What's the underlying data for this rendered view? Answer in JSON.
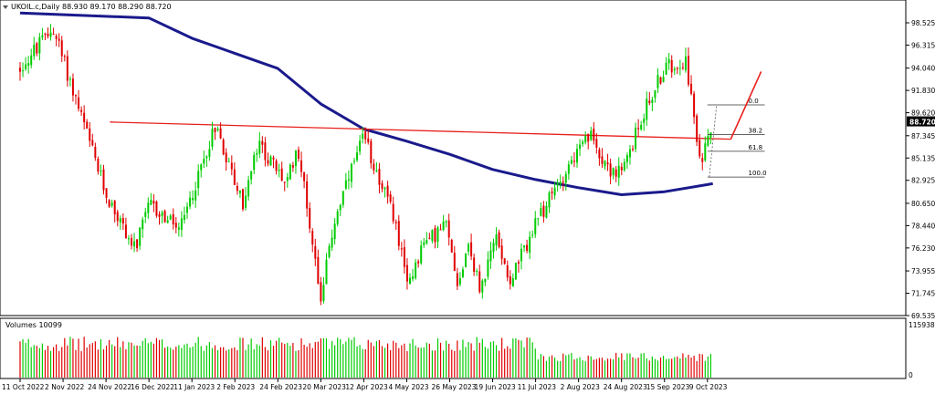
{
  "chart_data": [
    {
      "type": "candlestick",
      "title": "UKOIL.c,Daily",
      "ohlc_readout": "88.930 89.170 88.290 88.720",
      "current_price": "88.720",
      "y_ticks": [
        "98.525",
        "96.315",
        "94.040",
        "91.830",
        "89.620",
        "87.345",
        "85.135",
        "82.925",
        "80.650",
        "78.440",
        "76.230",
        "73.955",
        "71.745",
        "69.535"
      ],
      "ylim": [
        69.535,
        99.6
      ],
      "x_ticks": [
        "11 Oct 2022",
        "2 Nov 2022",
        "24 Nov 2022",
        "16 Dec 2022",
        "11 Jan 2023",
        "2 Feb 2023",
        "24 Feb 2023",
        "20 Mar 2023",
        "12 Apr 2023",
        "4 May 2023",
        "26 May 2023",
        "19 Jun 2023",
        "11 Jul 2023",
        "2 Aug 2023",
        "24 Aug 2023",
        "15 Sep 2023",
        "9 Oct 2023"
      ],
      "price_anchors": [
        {
          "x": "11 Oct 2022",
          "y": 94.0
        },
        {
          "x": "28 Oct 2022",
          "y": 98.0
        },
        {
          "x": "24 Nov 2022",
          "y": 81.5
        },
        {
          "x": "9 Dec 2022",
          "y": 76.0
        },
        {
          "x": "16 Dec 2022",
          "y": 80.5
        },
        {
          "x": "4 Jan 2023",
          "y": 78.0
        },
        {
          "x": "23 Jan 2023",
          "y": 88.5
        },
        {
          "x": "6 Feb 2023",
          "y": 80.5
        },
        {
          "x": "14 Feb 2023",
          "y": 86.5
        },
        {
          "x": "1 Mar 2023",
          "y": 82.5
        },
        {
          "x": "7 Mar 2023",
          "y": 86.5
        },
        {
          "x": "20 Mar 2023",
          "y": 71.5
        },
        {
          "x": "28 Mar 2023",
          "y": 79.5
        },
        {
          "x": "12 Apr 2023",
          "y": 87.2
        },
        {
          "x": "28 Apr 2023",
          "y": 79.0
        },
        {
          "x": "4 May 2023",
          "y": 72.5
        },
        {
          "x": "12 May 2023",
          "y": 76.5
        },
        {
          "x": "24 May 2023",
          "y": 78.5
        },
        {
          "x": "31 May 2023",
          "y": 72.5
        },
        {
          "x": "5 Jun 2023",
          "y": 77.0
        },
        {
          "x": "12 Jun 2023",
          "y": 72.0
        },
        {
          "x": "21 Jun 2023",
          "y": 77.5
        },
        {
          "x": "28 Jun 2023",
          "y": 73.0
        },
        {
          "x": "11 Jul 2023",
          "y": 78.5
        },
        {
          "x": "28 Jul 2023",
          "y": 84.5
        },
        {
          "x": "8 Aug 2023",
          "y": 87.3
        },
        {
          "x": "18 Aug 2023",
          "y": 84.0
        },
        {
          "x": "24 Aug 2023",
          "y": 83.5
        },
        {
          "x": "5 Sep 2023",
          "y": 90.0
        },
        {
          "x": "15 Sep 2023",
          "y": 94.0
        },
        {
          "x": "27 Sep 2023",
          "y": 95.0
        },
        {
          "x": "5 Oct 2023",
          "y": 84.1
        },
        {
          "x": "9 Oct 2023",
          "y": 88.0
        },
        {
          "x": "12 Oct 2023",
          "y": 88.7
        }
      ],
      "moving_average": [
        {
          "x": "11 Oct 2022",
          "y": 99.5
        },
        {
          "x": "16 Dec 2022",
          "y": 99.0
        },
        {
          "x": "11 Jan 2023",
          "y": 97.0
        },
        {
          "x": "24 Feb 2023",
          "y": 94.0
        },
        {
          "x": "20 Mar 2023",
          "y": 90.5
        },
        {
          "x": "12 Apr 2023",
          "y": 88.0
        },
        {
          "x": "4 May 2023",
          "y": 86.8
        },
        {
          "x": "26 May 2023",
          "y": 85.5
        },
        {
          "x": "19 Jun 2023",
          "y": 84.0
        },
        {
          "x": "11 Jul 2023",
          "y": 83.0
        },
        {
          "x": "2 Aug 2023",
          "y": 82.2
        },
        {
          "x": "24 Aug 2023",
          "y": 81.5
        },
        {
          "x": "15 Sep 2023",
          "y": 81.8
        },
        {
          "x": "9 Oct 2023",
          "y": 82.5
        },
        {
          "x": "12 Oct 2023",
          "y": 82.6
        }
      ],
      "trendline": [
        {
          "x": "26 Nov 2022",
          "y": 88.7
        },
        {
          "x": "22 Oct 2023",
          "y": 87.0
        }
      ],
      "fibonacci": {
        "levels": [
          {
            "label": "0.0",
            "price": 90.4
          },
          {
            "label": "38.2",
            "price": 87.45
          },
          {
            "label": "61.8",
            "price": 85.8
          },
          {
            "label": "100.0",
            "price": 83.25
          }
        ],
        "start": "9 Oct 2023",
        "end": "10 Nov 2023"
      },
      "projection_arrow": [
        {
          "x": "22 Oct 2023",
          "y": 87.0
        },
        {
          "x": "8 Nov 2023",
          "y": 93.7
        }
      ],
      "volume": {
        "label": "Volumes 10099",
        "y_ticks": [
          "115938",
          "0"
        ],
        "max": 115938
      }
    }
  ]
}
